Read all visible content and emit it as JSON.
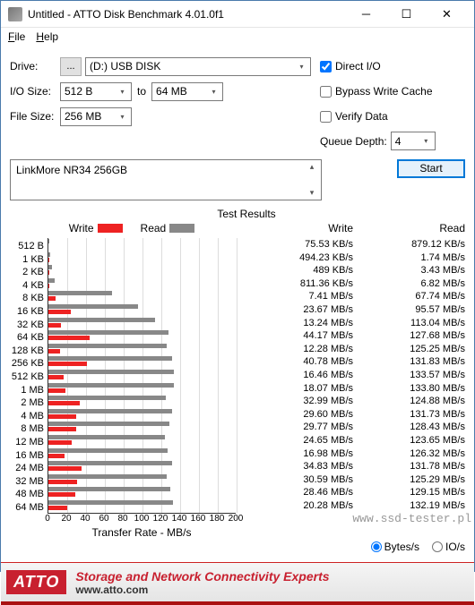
{
  "window": {
    "title": "Untitled - ATTO Disk Benchmark 4.01.0f1"
  },
  "menu": {
    "file": "File",
    "help": "Help"
  },
  "labels": {
    "drive": "Drive:",
    "iosize": "I/O Size:",
    "filesize": "File Size:",
    "to": "to",
    "queuedepth": "Queue Depth:"
  },
  "drive": {
    "btn": "...",
    "value": "(D:) USB DISK"
  },
  "iosize": {
    "from": "512 B",
    "to": "64 MB"
  },
  "filesize": "256 MB",
  "opts": {
    "directio": "Direct I/O",
    "bypass": "Bypass Write Cache",
    "verify": "Verify Data"
  },
  "queuedepth": "4",
  "start": "Start",
  "device": "LinkMore NR34 256GB",
  "results": {
    "title": "Test Results",
    "legend_write": "Write",
    "legend_read": "Read",
    "hdr_write": "Write",
    "hdr_read": "Read",
    "xlabel": "Transfer Rate - MB/s",
    "xmax": 200,
    "xticks": [
      0,
      20,
      40,
      60,
      80,
      100,
      120,
      140,
      160,
      180,
      200
    ],
    "color_write": "#e22222",
    "color_read": "#888888",
    "rows": [
      {
        "sz": "512 B",
        "w_txt": "75.53 KB/s",
        "r_txt": "879.12 KB/s",
        "w_mb": 0.07,
        "r_mb": 0.86
      },
      {
        "sz": "1 KB",
        "w_txt": "494.23 KB/s",
        "r_txt": "1.74 MB/s",
        "w_mb": 0.48,
        "r_mb": 1.74
      },
      {
        "sz": "2 KB",
        "w_txt": "489 KB/s",
        "r_txt": "3.43 MB/s",
        "w_mb": 0.48,
        "r_mb": 3.43
      },
      {
        "sz": "4 KB",
        "w_txt": "811.36 KB/s",
        "r_txt": "6.82 MB/s",
        "w_mb": 0.79,
        "r_mb": 6.82
      },
      {
        "sz": "8 KB",
        "w_txt": "7.41 MB/s",
        "r_txt": "67.74 MB/s",
        "w_mb": 7.41,
        "r_mb": 67.74
      },
      {
        "sz": "16 KB",
        "w_txt": "23.67 MB/s",
        "r_txt": "95.57 MB/s",
        "w_mb": 23.67,
        "r_mb": 95.57
      },
      {
        "sz": "32 KB",
        "w_txt": "13.24 MB/s",
        "r_txt": "113.04 MB/s",
        "w_mb": 13.24,
        "r_mb": 113.04
      },
      {
        "sz": "64 KB",
        "w_txt": "44.17 MB/s",
        "r_txt": "127.68 MB/s",
        "w_mb": 44.17,
        "r_mb": 127.68
      },
      {
        "sz": "128 KB",
        "w_txt": "12.28 MB/s",
        "r_txt": "125.25 MB/s",
        "w_mb": 12.28,
        "r_mb": 125.25
      },
      {
        "sz": "256 KB",
        "w_txt": "40.78 MB/s",
        "r_txt": "131.83 MB/s",
        "w_mb": 40.78,
        "r_mb": 131.83
      },
      {
        "sz": "512 KB",
        "w_txt": "16.46 MB/s",
        "r_txt": "133.57 MB/s",
        "w_mb": 16.46,
        "r_mb": 133.57
      },
      {
        "sz": "1 MB",
        "w_txt": "18.07 MB/s",
        "r_txt": "133.80 MB/s",
        "w_mb": 18.07,
        "r_mb": 133.8
      },
      {
        "sz": "2 MB",
        "w_txt": "32.99 MB/s",
        "r_txt": "124.88 MB/s",
        "w_mb": 32.99,
        "r_mb": 124.88
      },
      {
        "sz": "4 MB",
        "w_txt": "29.60 MB/s",
        "r_txt": "131.73 MB/s",
        "w_mb": 29.6,
        "r_mb": 131.73
      },
      {
        "sz": "8 MB",
        "w_txt": "29.77 MB/s",
        "r_txt": "128.43 MB/s",
        "w_mb": 29.77,
        "r_mb": 128.43
      },
      {
        "sz": "12 MB",
        "w_txt": "24.65 MB/s",
        "r_txt": "123.65 MB/s",
        "w_mb": 24.65,
        "r_mb": 123.65
      },
      {
        "sz": "16 MB",
        "w_txt": "16.98 MB/s",
        "r_txt": "126.32 MB/s",
        "w_mb": 16.98,
        "r_mb": 126.32
      },
      {
        "sz": "24 MB",
        "w_txt": "34.83 MB/s",
        "r_txt": "131.78 MB/s",
        "w_mb": 34.83,
        "r_mb": 131.78
      },
      {
        "sz": "32 MB",
        "w_txt": "30.59 MB/s",
        "r_txt": "125.29 MB/s",
        "w_mb": 30.59,
        "r_mb": 125.29
      },
      {
        "sz": "48 MB",
        "w_txt": "28.46 MB/s",
        "r_txt": "129.15 MB/s",
        "w_mb": 28.46,
        "r_mb": 129.15
      },
      {
        "sz": "64 MB",
        "w_txt": "20.28 MB/s",
        "r_txt": "132.19 MB/s",
        "w_mb": 20.28,
        "r_mb": 132.19
      }
    ]
  },
  "units": {
    "bytes": "Bytes/s",
    "ios": "IO/s"
  },
  "footer": {
    "logo": "ATTO",
    "l1": "Storage and Network Connectivity Experts",
    "l2": "www.atto.com"
  },
  "watermark": "www.ssd-tester.pl"
}
